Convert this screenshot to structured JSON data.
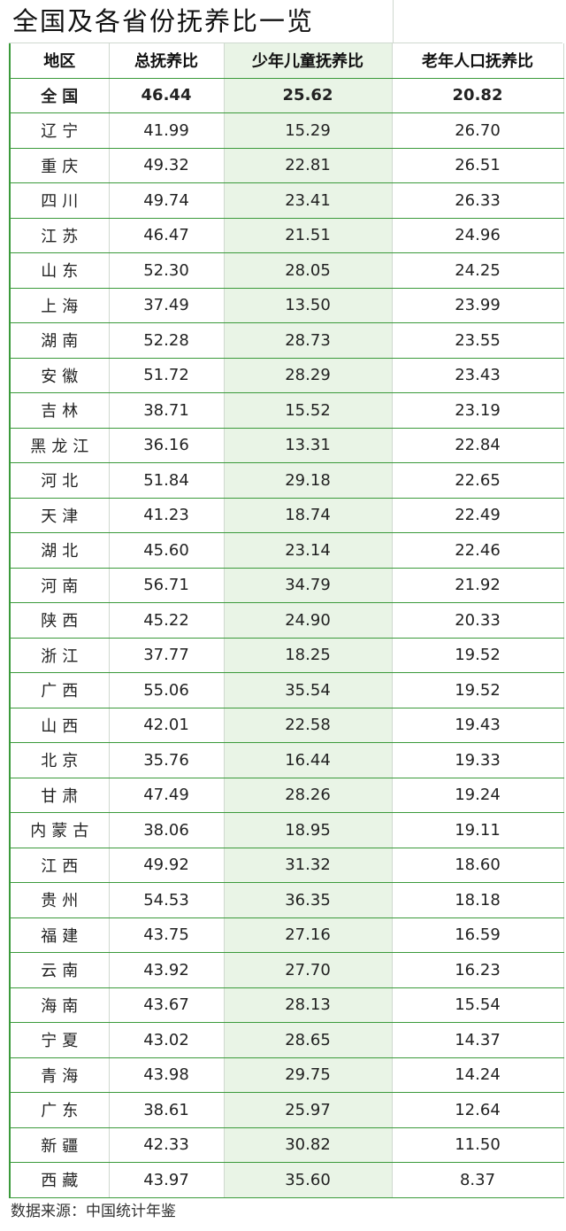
{
  "title": "全国及各省份抚养比一览",
  "columns": [
    "地区",
    "总抚养比",
    "少年儿童抚养比",
    "老年人口抚养比"
  ],
  "rows": [
    {
      "region": "全国",
      "total": "46.44",
      "child": "25.62",
      "elderly": "20.82"
    },
    {
      "region": "辽宁",
      "total": "41.99",
      "child": "15.29",
      "elderly": "26.70"
    },
    {
      "region": "重庆",
      "total": "49.32",
      "child": "22.81",
      "elderly": "26.51"
    },
    {
      "region": "四川",
      "total": "49.74",
      "child": "23.41",
      "elderly": "26.33"
    },
    {
      "region": "江苏",
      "total": "46.47",
      "child": "21.51",
      "elderly": "24.96"
    },
    {
      "region": "山东",
      "total": "52.30",
      "child": "28.05",
      "elderly": "24.25"
    },
    {
      "region": "上海",
      "total": "37.49",
      "child": "13.50",
      "elderly": "23.99"
    },
    {
      "region": "湖南",
      "total": "52.28",
      "child": "28.73",
      "elderly": "23.55"
    },
    {
      "region": "安徽",
      "total": "51.72",
      "child": "28.29",
      "elderly": "23.43"
    },
    {
      "region": "吉林",
      "total": "38.71",
      "child": "15.52",
      "elderly": "23.19"
    },
    {
      "region": "黑龙江",
      "total": "36.16",
      "child": "13.31",
      "elderly": "22.84"
    },
    {
      "region": "河北",
      "total": "51.84",
      "child": "29.18",
      "elderly": "22.65"
    },
    {
      "region": "天津",
      "total": "41.23",
      "child": "18.74",
      "elderly": "22.49"
    },
    {
      "region": "湖北",
      "total": "45.60",
      "child": "23.14",
      "elderly": "22.46"
    },
    {
      "region": "河南",
      "total": "56.71",
      "child": "34.79",
      "elderly": "21.92"
    },
    {
      "region": "陕西",
      "total": "45.22",
      "child": "24.90",
      "elderly": "20.33"
    },
    {
      "region": "浙江",
      "total": "37.77",
      "child": "18.25",
      "elderly": "19.52"
    },
    {
      "region": "广西",
      "total": "55.06",
      "child": "35.54",
      "elderly": "19.52"
    },
    {
      "region": "山西",
      "total": "42.01",
      "child": "22.58",
      "elderly": "19.43"
    },
    {
      "region": "北京",
      "total": "35.76",
      "child": "16.44",
      "elderly": "19.33"
    },
    {
      "region": "甘肃",
      "total": "47.49",
      "child": "28.26",
      "elderly": "19.24"
    },
    {
      "region": "内蒙古",
      "total": "38.06",
      "child": "18.95",
      "elderly": "19.11"
    },
    {
      "region": "江西",
      "total": "49.92",
      "child": "31.32",
      "elderly": "18.60"
    },
    {
      "region": "贵州",
      "total": "54.53",
      "child": "36.35",
      "elderly": "18.18"
    },
    {
      "region": "福建",
      "total": "43.75",
      "child": "27.16",
      "elderly": "16.59"
    },
    {
      "region": "云南",
      "total": "43.92",
      "child": "27.70",
      "elderly": "16.23"
    },
    {
      "region": "海南",
      "total": "43.67",
      "child": "28.13",
      "elderly": "15.54"
    },
    {
      "region": "宁夏",
      "total": "43.02",
      "child": "28.65",
      "elderly": "14.37"
    },
    {
      "region": "青海",
      "total": "43.98",
      "child": "29.75",
      "elderly": "14.24"
    },
    {
      "region": "广东",
      "total": "38.61",
      "child": "25.97",
      "elderly": "12.64"
    },
    {
      "region": "新疆",
      "total": "42.33",
      "child": "30.82",
      "elderly": "11.50"
    },
    {
      "region": "西藏",
      "total": "43.97",
      "child": "35.60",
      "elderly": "8.37"
    }
  ],
  "source": "数据来源：中国统计年鉴",
  "colors": {
    "grid_green": "#3b9a3b",
    "child_column_fill": "#e9f4e6"
  }
}
